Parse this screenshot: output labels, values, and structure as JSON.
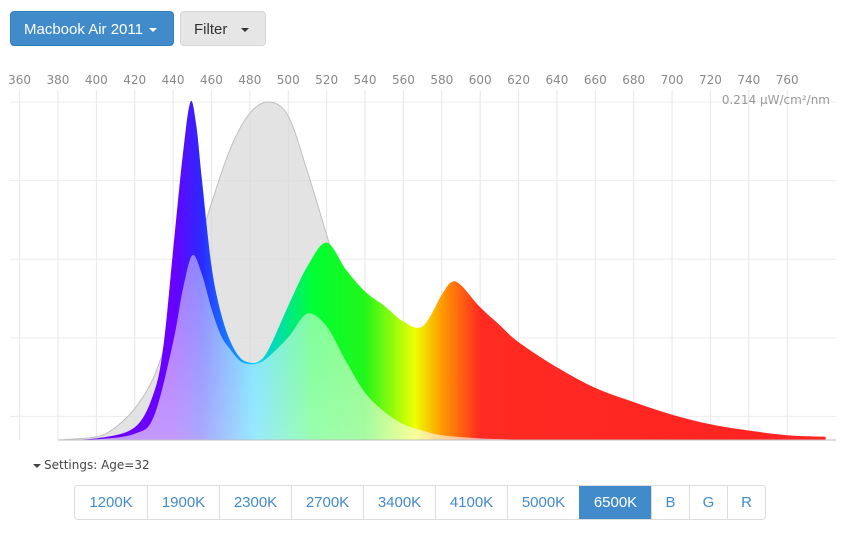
{
  "toolbar": {
    "device_label": "Macbook Air 2011",
    "filter_label": "Filter",
    "caret_icon": "caret-down-icon"
  },
  "chart_data": {
    "type": "area",
    "title": "",
    "xlabel": "",
    "ylabel": "",
    "x_ticks": [
      360,
      380,
      400,
      420,
      440,
      460,
      480,
      500,
      520,
      540,
      560,
      580,
      600,
      620,
      640,
      660,
      680,
      700,
      720,
      740,
      760
    ],
    "xlim": [
      355,
      780
    ],
    "ylim": [
      0,
      0.214
    ],
    "y_max_label": "0.214 µW/cm²/nm",
    "grid": true,
    "series": [
      {
        "name": "",
        "role": "reference-sensitivity",
        "color": "#d8d8d8",
        "x": [
          380,
          400,
          410,
          420,
          430,
          440,
          450,
          460,
          470,
          480,
          490,
          500,
          510,
          520,
          530,
          540,
          550,
          560,
          570,
          580,
          600,
          620,
          640
        ],
        "y": [
          0,
          0.002,
          0.008,
          0.02,
          0.04,
          0.075,
          0.11,
          0.15,
          0.185,
          0.207,
          0.214,
          0.205,
          0.17,
          0.13,
          0.09,
          0.058,
          0.035,
          0.02,
          0.012,
          0.007,
          0.002,
          0.0005,
          0
        ]
      },
      {
        "name": "",
        "role": "display-spectrum",
        "x": [
          380,
          400,
          420,
          430,
          435,
          440,
          445,
          449,
          452,
          455,
          460,
          465,
          470,
          475,
          480,
          485,
          490,
          500,
          510,
          520,
          530,
          540,
          550,
          560,
          570,
          580,
          585,
          590,
          600,
          610,
          620,
          640,
          660,
          680,
          700,
          720,
          740,
          760,
          780
        ],
        "y": [
          0,
          0.001,
          0.008,
          0.03,
          0.06,
          0.12,
          0.18,
          0.214,
          0.2,
          0.165,
          0.11,
          0.08,
          0.062,
          0.052,
          0.049,
          0.05,
          0.058,
          0.085,
          0.11,
          0.125,
          0.108,
          0.094,
          0.085,
          0.075,
          0.072,
          0.092,
          0.1,
          0.098,
          0.084,
          0.073,
          0.062,
          0.046,
          0.033,
          0.024,
          0.016,
          0.01,
          0.006,
          0.003,
          0.002
        ]
      },
      {
        "name": "",
        "role": "age-filtered-spectrum",
        "x": [
          380,
          400,
          420,
          430,
          440,
          445,
          450,
          455,
          460,
          465,
          470,
          475,
          480,
          485,
          490,
          500,
          510,
          520,
          530,
          540,
          550,
          560,
          570,
          580,
          600,
          620,
          640
        ],
        "y": [
          0,
          0.0005,
          0.004,
          0.015,
          0.062,
          0.095,
          0.117,
          0.105,
          0.083,
          0.066,
          0.057,
          0.05,
          0.048,
          0.049,
          0.053,
          0.065,
          0.08,
          0.072,
          0.05,
          0.03,
          0.018,
          0.01,
          0.006,
          0.003,
          0.001,
          0.0003,
          0
        ]
      }
    ]
  },
  "settings": {
    "label": "Settings: Age=32",
    "toggle_icon": "caret-down-icon"
  },
  "presets": [
    {
      "label": "1200K",
      "active": false
    },
    {
      "label": "1900K",
      "active": false
    },
    {
      "label": "2300K",
      "active": false
    },
    {
      "label": "2700K",
      "active": false
    },
    {
      "label": "3400K",
      "active": false
    },
    {
      "label": "4100K",
      "active": false
    },
    {
      "label": "5000K",
      "active": false
    },
    {
      "label": "6500K",
      "active": true
    },
    {
      "label": "B",
      "active": false
    },
    {
      "label": "G",
      "active": false
    },
    {
      "label": "R",
      "active": false
    }
  ]
}
